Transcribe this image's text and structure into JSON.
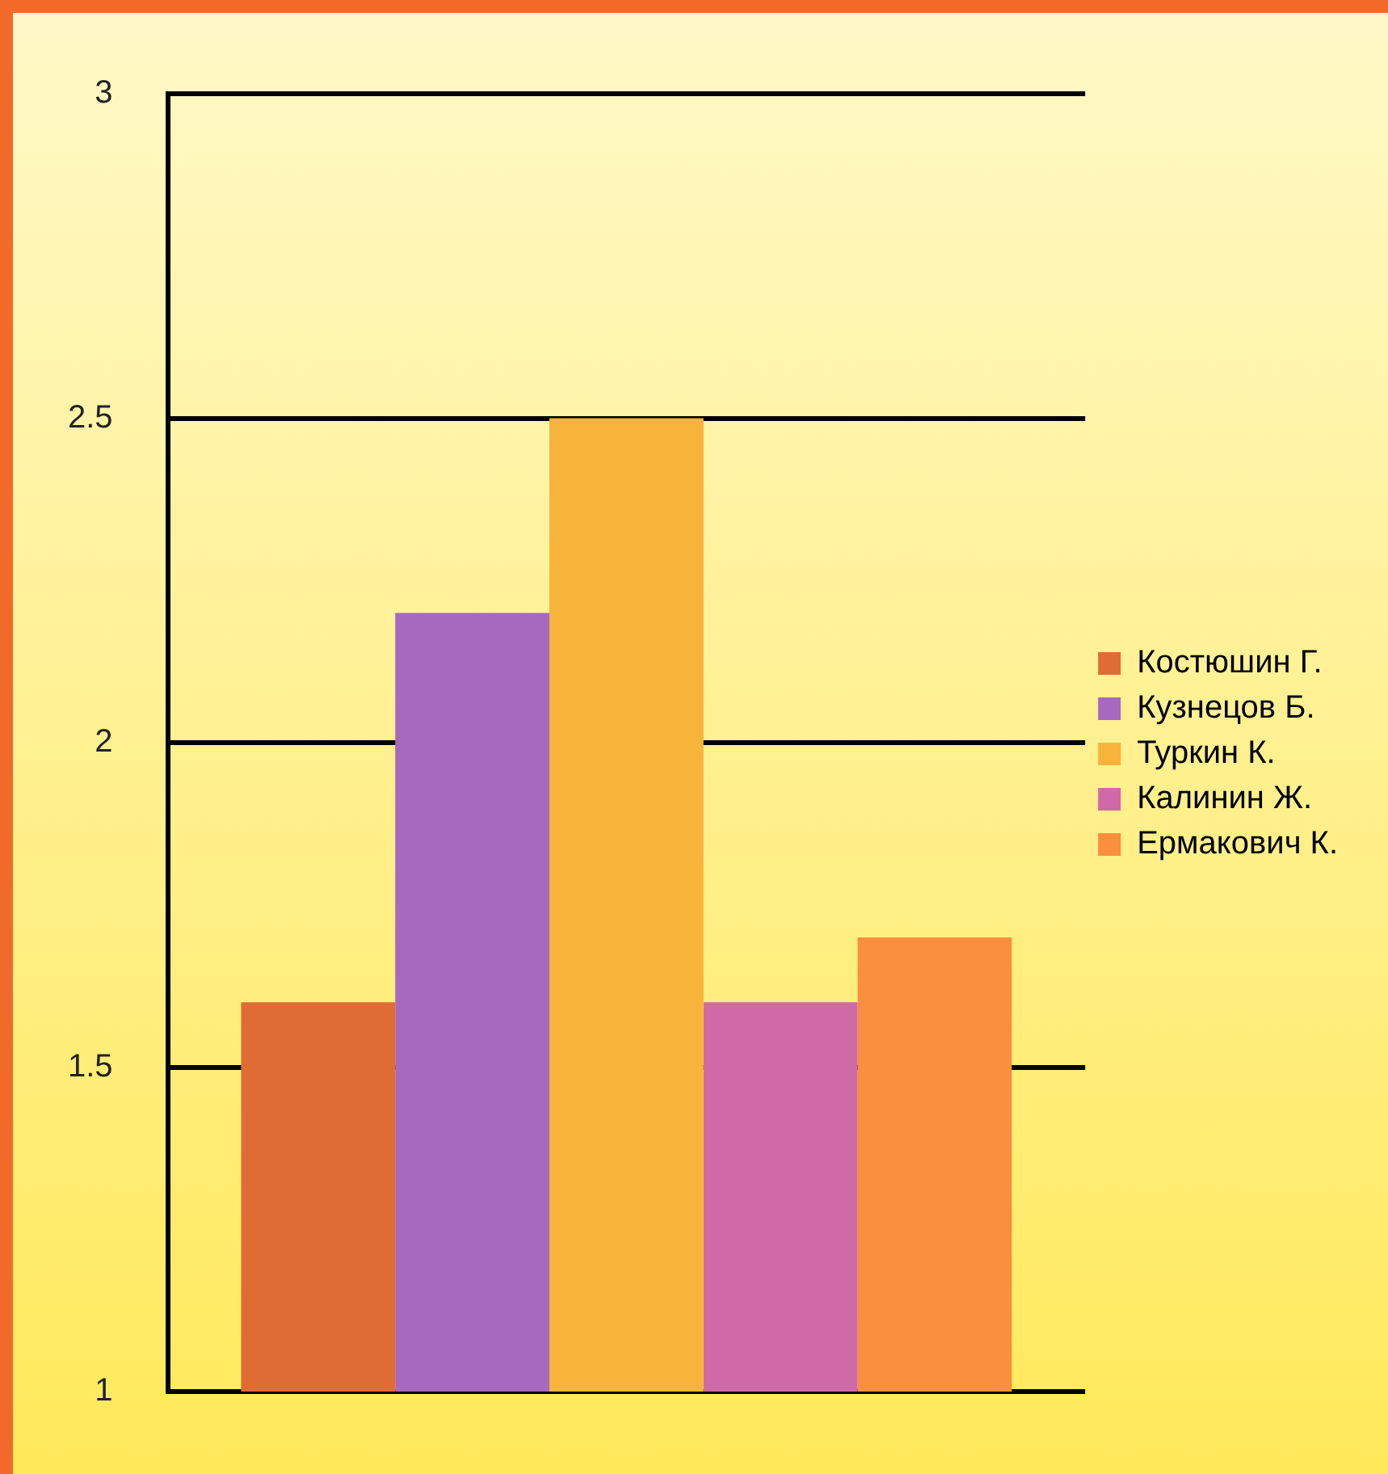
{
  "chart_data": {
    "type": "bar",
    "categories": [
      null
    ],
    "series": [
      {
        "name": "Костюшин Г.",
        "color": "#e06c35",
        "values": [
          1.6
        ]
      },
      {
        "name": "Кузнецов Б.",
        "color": "#a768bf",
        "values": [
          2.2
        ]
      },
      {
        "name": "Туркин К.",
        "color": "#f7b43a",
        "values": [
          2.5
        ]
      },
      {
        "name": "Калинин Ж.",
        "color": "#d06aa6",
        "values": [
          1.6
        ]
      },
      {
        "name": "Ермакович К.",
        "color": "#f98f3f",
        "values": [
          1.7
        ]
      }
    ],
    "ylim": [
      1,
      3
    ],
    "yticks": [
      1,
      1.5,
      2,
      2.5,
      3
    ],
    "grid": "y",
    "legend": "right"
  }
}
